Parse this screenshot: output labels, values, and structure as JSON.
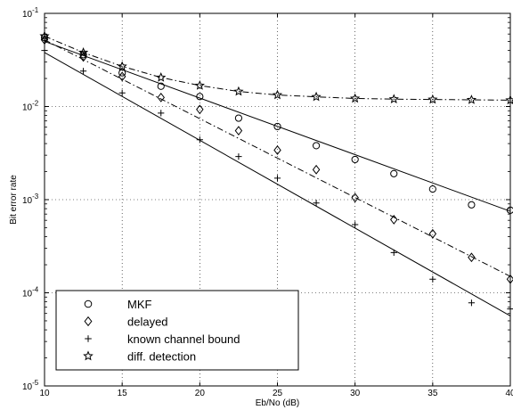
{
  "chart_data": {
    "type": "line",
    "xlabel": "Eb/No (dB)",
    "ylabel": "Bit error rate",
    "xlim": [
      10,
      40
    ],
    "ylim": [
      1e-05,
      0.1
    ],
    "yscale": "log",
    "grid": true,
    "legend_position": "bottom-left",
    "x_ticks": [
      10,
      15,
      20,
      25,
      30,
      35,
      40
    ],
    "y_ticks": [
      {
        "value": 1e-05,
        "base": "10",
        "exp": "-5"
      },
      {
        "value": 0.0001,
        "base": "10",
        "exp": "-4"
      },
      {
        "value": 0.001,
        "base": "10",
        "exp": "-3"
      },
      {
        "value": 0.01,
        "base": "10",
        "exp": "-2"
      },
      {
        "value": 0.1,
        "base": "10",
        "exp": "-1"
      }
    ],
    "series": [
      {
        "name": "MKF",
        "marker": "circle",
        "line": "solid",
        "x": [
          10,
          12.5,
          15,
          17.5,
          20,
          22.5,
          25,
          27.5,
          30,
          32.5,
          35,
          37.5,
          40
        ],
        "y": [
          0.055,
          0.036,
          0.023,
          0.0165,
          0.0128,
          0.0075,
          0.0061,
          0.0038,
          0.0027,
          0.0019,
          0.0013,
          0.00088,
          0.00077
        ],
        "fit": [
          [
            10,
            0.05
          ],
          [
            40,
            0.00075
          ]
        ]
      },
      {
        "name": "delayed",
        "marker": "diamond",
        "line": "dashdot",
        "x": [
          10,
          12.5,
          15,
          17.5,
          20,
          22.5,
          25,
          27.5,
          30,
          32.5,
          35,
          37.5,
          40
        ],
        "y": [
          0.052,
          0.034,
          0.021,
          0.0125,
          0.0093,
          0.0055,
          0.0034,
          0.0021,
          0.00105,
          0.00061,
          0.00043,
          0.00024,
          0.00014
        ],
        "fit": [
          [
            10,
            0.052
          ],
          [
            40,
            0.00015
          ]
        ]
      },
      {
        "name": "known channel bound",
        "marker": "plus",
        "line": "solid",
        "x": [
          10,
          12.5,
          15,
          17.5,
          20,
          22.5,
          25,
          27.5,
          30,
          32.5,
          35,
          37.5,
          40
        ],
        "y": [
          0.04,
          0.024,
          0.014,
          0.0085,
          0.0044,
          0.0029,
          0.0017,
          0.00092,
          0.00054,
          0.00027,
          0.00014,
          7.8e-05,
          6.7e-05
        ],
        "fit": [
          [
            10,
            0.038
          ],
          [
            40,
            5.65e-05
          ]
        ]
      },
      {
        "name": "diff. detection",
        "marker": "star",
        "line": "dashdot",
        "x": [
          10,
          12.5,
          15,
          17.5,
          20,
          22.5,
          25,
          27.5,
          30,
          32.5,
          35,
          37.5,
          40
        ],
        "y": [
          0.057,
          0.038,
          0.027,
          0.0205,
          0.0168,
          0.0145,
          0.0133,
          0.0127,
          0.0122,
          0.012,
          0.0119,
          0.0118,
          0.0117
        ],
        "fit": null
      }
    ]
  }
}
